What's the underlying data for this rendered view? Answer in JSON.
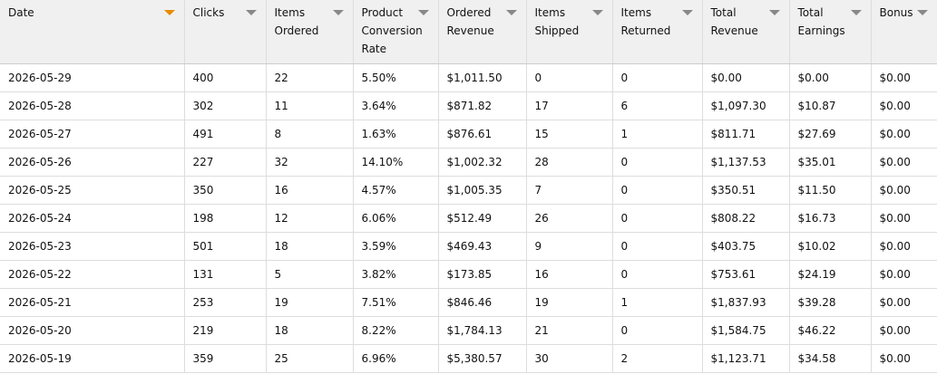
{
  "table": {
    "columns": [
      "Date",
      "Clicks",
      "Items Ordered",
      "Product Conversion Rate",
      "Ordered Revenue",
      "Items Shipped",
      "Items Returned",
      "Total Revenue",
      "Total Earnings",
      "Bonus"
    ],
    "rows": [
      [
        "2026-05-29",
        "400",
        "22",
        "5.50%",
        "$1,011.50",
        "0",
        "0",
        "$0.00",
        "$0.00",
        "$0.00"
      ],
      [
        "2026-05-28",
        "302",
        "11",
        "3.64%",
        "$871.82",
        "17",
        "6",
        "$1,097.30",
        "$10.87",
        "$0.00"
      ],
      [
        "2026-05-27",
        "491",
        "8",
        "1.63%",
        "$876.61",
        "15",
        "1",
        "$811.71",
        "$27.69",
        "$0.00"
      ],
      [
        "2026-05-26",
        "227",
        "32",
        "14.10%",
        "$1,002.32",
        "28",
        "0",
        "$1,137.53",
        "$35.01",
        "$0.00"
      ],
      [
        "2026-05-25",
        "350",
        "16",
        "4.57%",
        "$1,005.35",
        "7",
        "0",
        "$350.51",
        "$11.50",
        "$0.00"
      ],
      [
        "2026-05-24",
        "198",
        "12",
        "6.06%",
        "$512.49",
        "26",
        "0",
        "$808.22",
        "$16.73",
        "$0.00"
      ],
      [
        "2026-05-23",
        "501",
        "18",
        "3.59%",
        "$469.43",
        "9",
        "0",
        "$403.75",
        "$10.02",
        "$0.00"
      ],
      [
        "2026-05-22",
        "131",
        "5",
        "3.82%",
        "$173.85",
        "16",
        "0",
        "$753.61",
        "$24.19",
        "$0.00"
      ],
      [
        "2026-05-21",
        "253",
        "19",
        "7.51%",
        "$846.46",
        "19",
        "1",
        "$1,837.93",
        "$39.28",
        "$0.00"
      ],
      [
        "2026-05-20",
        "219",
        "18",
        "8.22%",
        "$1,784.13",
        "21",
        "0",
        "$1,584.75",
        "$46.22",
        "$0.00"
      ],
      [
        "2026-05-19",
        "359",
        "25",
        "6.96%",
        "$5,380.57",
        "30",
        "2",
        "$1,123.71",
        "$34.58",
        "$0.00"
      ]
    ]
  }
}
